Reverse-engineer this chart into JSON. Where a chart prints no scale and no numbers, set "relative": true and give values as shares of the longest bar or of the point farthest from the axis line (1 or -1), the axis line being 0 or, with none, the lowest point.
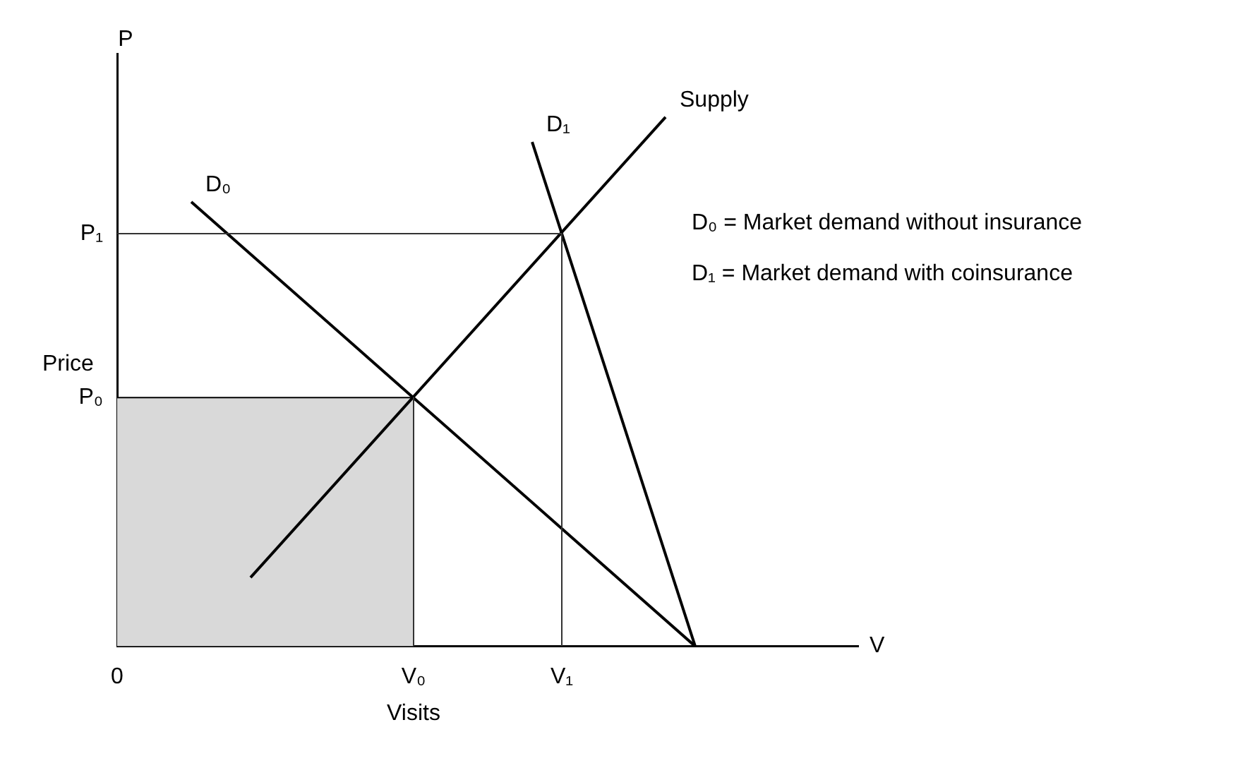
{
  "chart_data": {
    "type": "line",
    "relative": true,
    "xlabel": "Visits",
    "ylabel": "Price",
    "grid": false,
    "legend": false,
    "marker": "none",
    "categories": [
      "0",
      null,
      null,
      null,
      null,
      null,
      null,
      null,
      null,
      null,
      null,
      null,
      null,
      null,
      null,
      null,
      null,
      null,
      null,
      null,
      "V₀",
      null,
      null,
      null,
      null,
      null,
      null,
      null,
      null,
      null,
      "V₁",
      null,
      null,
      null,
      null,
      null,
      null,
      null,
      null,
      null,
      null,
      null,
      null,
      null,
      null,
      null,
      null,
      null,
      null,
      null,
      null
    ],
    "series": [
      {
        "type": "area",
        "color": "#d9d9d9",
        "values": [
          0.47,
          0.47,
          0.47,
          0.47,
          0.47,
          0.47,
          0.47,
          0.47,
          0.47,
          0.47,
          0.47,
          0.47,
          0.47,
          0.47,
          0.47,
          0.47,
          0.47,
          0.47,
          0.47,
          0.47,
          0.47,
          null,
          null,
          null,
          null,
          null,
          null,
          null,
          null,
          null,
          null,
          null,
          null,
          null,
          null,
          null,
          null,
          null,
          null,
          null,
          null,
          null,
          null,
          null,
          null,
          null,
          null,
          null,
          null,
          null,
          null
        ]
      },
      {
        "color": "#333333",
        "x": [
          "V₀",
          "V₀"
        ],
        "values": [
          0.47,
          0
        ]
      },
      {
        "color": "#333333",
        "values": [
          0.78,
          null,
          null,
          null,
          null,
          null,
          null,
          null,
          null,
          null,
          null,
          null,
          null,
          null,
          null,
          null,
          null,
          null,
          null,
          null,
          null,
          null,
          null,
          null,
          null,
          null,
          null,
          null,
          null,
          null,
          0.78,
          null,
          null,
          null,
          null,
          null,
          null,
          null,
          null,
          null,
          null,
          null,
          null,
          null,
          null,
          null,
          null,
          null,
          null,
          null,
          null
        ]
      },
      {
        "color": "#333333",
        "x": [
          "V₁",
          "V₁"
        ],
        "values": [
          0.78,
          0
        ]
      },
      {
        "name": "D₀",
        "color": "#000000",
        "values": [
          null,
          null,
          null,
          null,
          null,
          0.84,
          null,
          null,
          null,
          null,
          null,
          null,
          null,
          null,
          null,
          null,
          null,
          null,
          null,
          null,
          null,
          null,
          null,
          null,
          null,
          null,
          null,
          null,
          null,
          null,
          null,
          null,
          null,
          null,
          null,
          null,
          null,
          null,
          null,
          0,
          null,
          null,
          null,
          null,
          null,
          null,
          null,
          null,
          null,
          null,
          null
        ]
      },
      {
        "name": "D₁",
        "color": "#000000",
        "values": [
          null,
          null,
          null,
          null,
          null,
          null,
          null,
          null,
          null,
          null,
          null,
          null,
          null,
          null,
          null,
          null,
          null,
          null,
          null,
          null,
          null,
          null,
          null,
          null,
          null,
          null,
          null,
          null,
          0.953,
          null,
          null,
          null,
          null,
          null,
          null,
          null,
          null,
          null,
          null,
          0,
          null,
          null,
          null,
          null,
          null,
          null,
          null,
          null,
          null,
          null,
          null
        ]
      },
      {
        "name": "Supply",
        "color": "#000000",
        "values": [
          null,
          null,
          null,
          null,
          null,
          null,
          null,
          null,
          null,
          0.13,
          null,
          null,
          null,
          null,
          null,
          null,
          null,
          null,
          null,
          null,
          null,
          null,
          null,
          null,
          null,
          null,
          null,
          null,
          null,
          null,
          null,
          null,
          null,
          null,
          null,
          null,
          null,
          1,
          null,
          null,
          null,
          null,
          null,
          null,
          null,
          null,
          null,
          null,
          null,
          null,
          null
        ]
      }
    ],
    "annotations": [
      "P",
      "V",
      "D₀ = Market demand without insurance",
      "D₁ = Market demand with coinsurance",
      "P₀",
      "P₁"
    ]
  }
}
